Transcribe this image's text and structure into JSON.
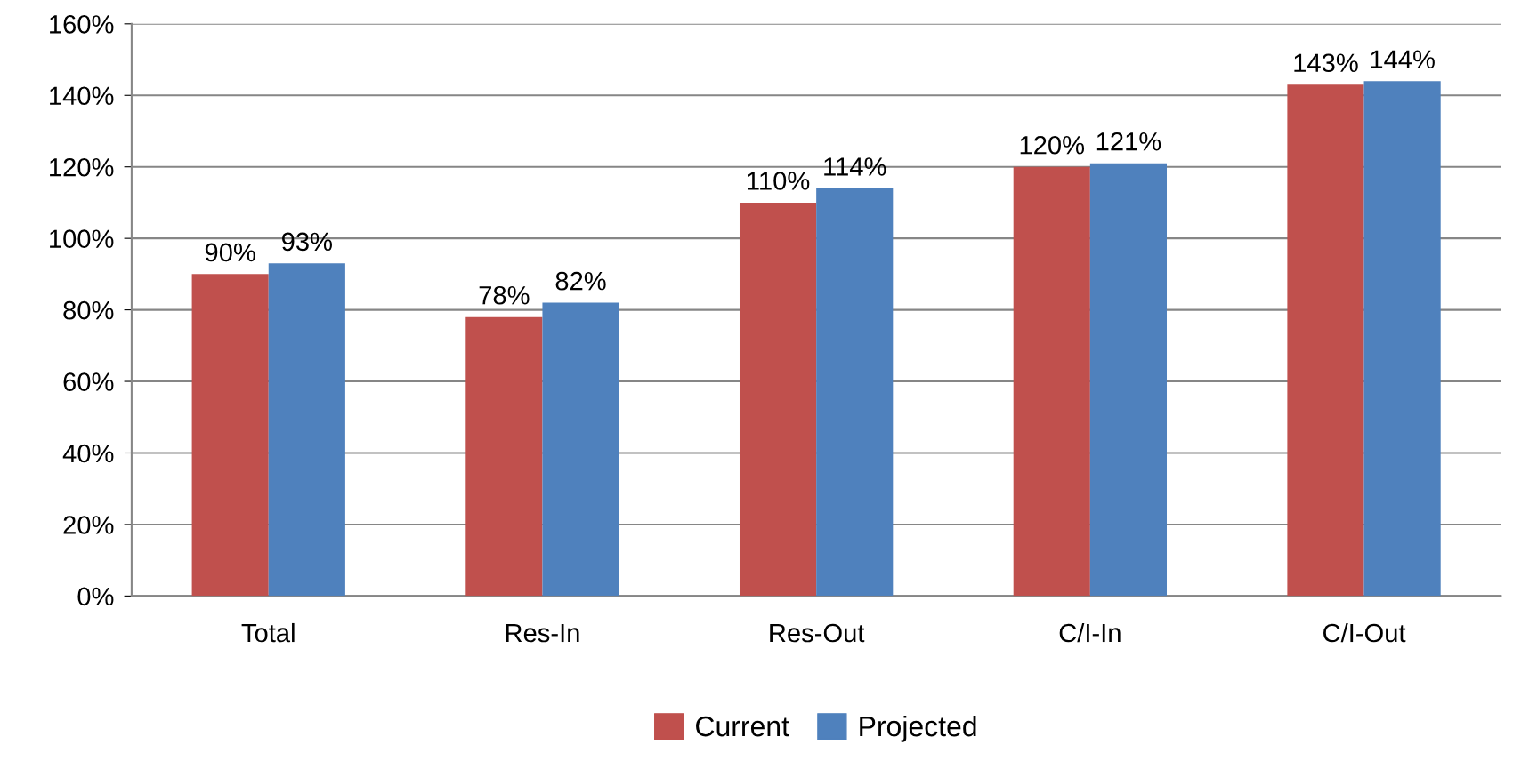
{
  "chart_data": {
    "type": "bar",
    "categories": [
      "Total",
      "Res-In",
      "Res-Out",
      "C/I-In",
      "C/I-Out"
    ],
    "series": [
      {
        "name": "Current",
        "color": "#c0504d",
        "values": [
          90,
          78,
          110,
          120,
          143
        ],
        "value_labels": [
          "90%",
          "78%",
          "110%",
          "120%",
          "143%"
        ]
      },
      {
        "name": "Projected",
        "color": "#4f81bd",
        "values": [
          93,
          82,
          114,
          121,
          144
        ],
        "value_labels": [
          "93%",
          "82%",
          "114%",
          "121%",
          "144%"
        ]
      }
    ],
    "ylim": [
      0,
      160
    ],
    "yticks": [
      {
        "value": 0,
        "label": "0%"
      },
      {
        "value": 20,
        "label": "20%"
      },
      {
        "value": 40,
        "label": "40%"
      },
      {
        "value": 60,
        "label": "60%"
      },
      {
        "value": 80,
        "label": "80%"
      },
      {
        "value": 100,
        "label": "100%"
      },
      {
        "value": 120,
        "label": "120%"
      },
      {
        "value": 140,
        "label": "140%"
      },
      {
        "value": 160,
        "label": "160%"
      }
    ],
    "grid": "y",
    "legend": "bottom"
  }
}
